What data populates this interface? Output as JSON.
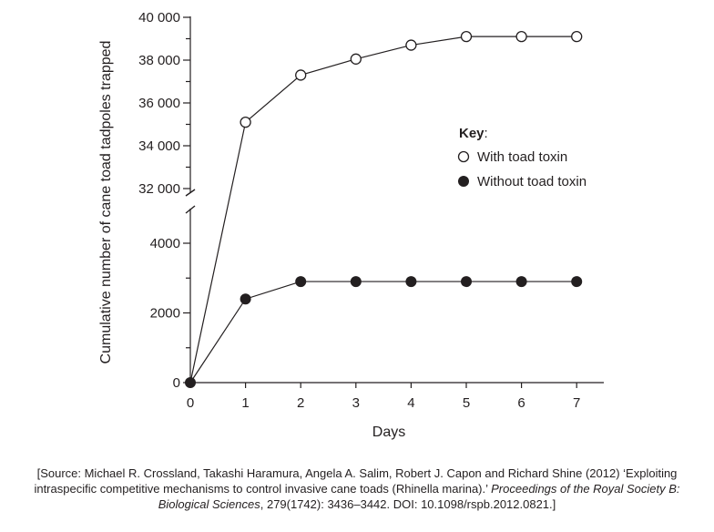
{
  "chart_data": {
    "type": "line",
    "xlabel": "Days",
    "ylabel": "Cumulative number of cane toad tadpoles trapped",
    "x": [
      0,
      1,
      2,
      3,
      4,
      5,
      6,
      7
    ],
    "x_ticks": [
      "0",
      "1",
      "2",
      "3",
      "4",
      "5",
      "6",
      "7"
    ],
    "y_ticks_lower": [
      "0",
      "2000",
      "4000"
    ],
    "y_ticks_upper": [
      "32 000",
      "34 000",
      "36 000",
      "38 000",
      "40 000"
    ],
    "y_axis_break": true,
    "ylim_lower": [
      0,
      5000
    ],
    "ylim_upper": [
      32000,
      40000
    ],
    "series": [
      {
        "name": "With toad toxin",
        "marker": "open-circle",
        "values": [
          0,
          35100,
          37300,
          38050,
          38700,
          39100,
          39100,
          39100
        ]
      },
      {
        "name": "Without toad toxin",
        "marker": "filled-circle",
        "values": [
          0,
          2400,
          2900,
          2900,
          2900,
          2900,
          2900,
          2900
        ]
      }
    ],
    "legend": {
      "title": "Key",
      "title_suffix": ":",
      "placement": "right"
    },
    "grid": false
  },
  "source": {
    "line1": "[Source: Michael R. Crossland, Takashi Haramura, Angela A. Salim, Robert J. Capon and Richard Shine (2012) ‘Exploiting",
    "line2": "intraspecific competitive mechanisms to control invasive cane toads (Rhinella marina).’",
    "journal": "Proceedings of the Royal Society B:",
    "line3_italic": "Biological Sciences",
    "line3_rest": ", 279(1742): 3436–3442. DOI: 10.1098/rspb.2012.0821.]"
  },
  "colors": {
    "ink": "#231f20",
    "open_marker_fill": "#ffffff"
  }
}
